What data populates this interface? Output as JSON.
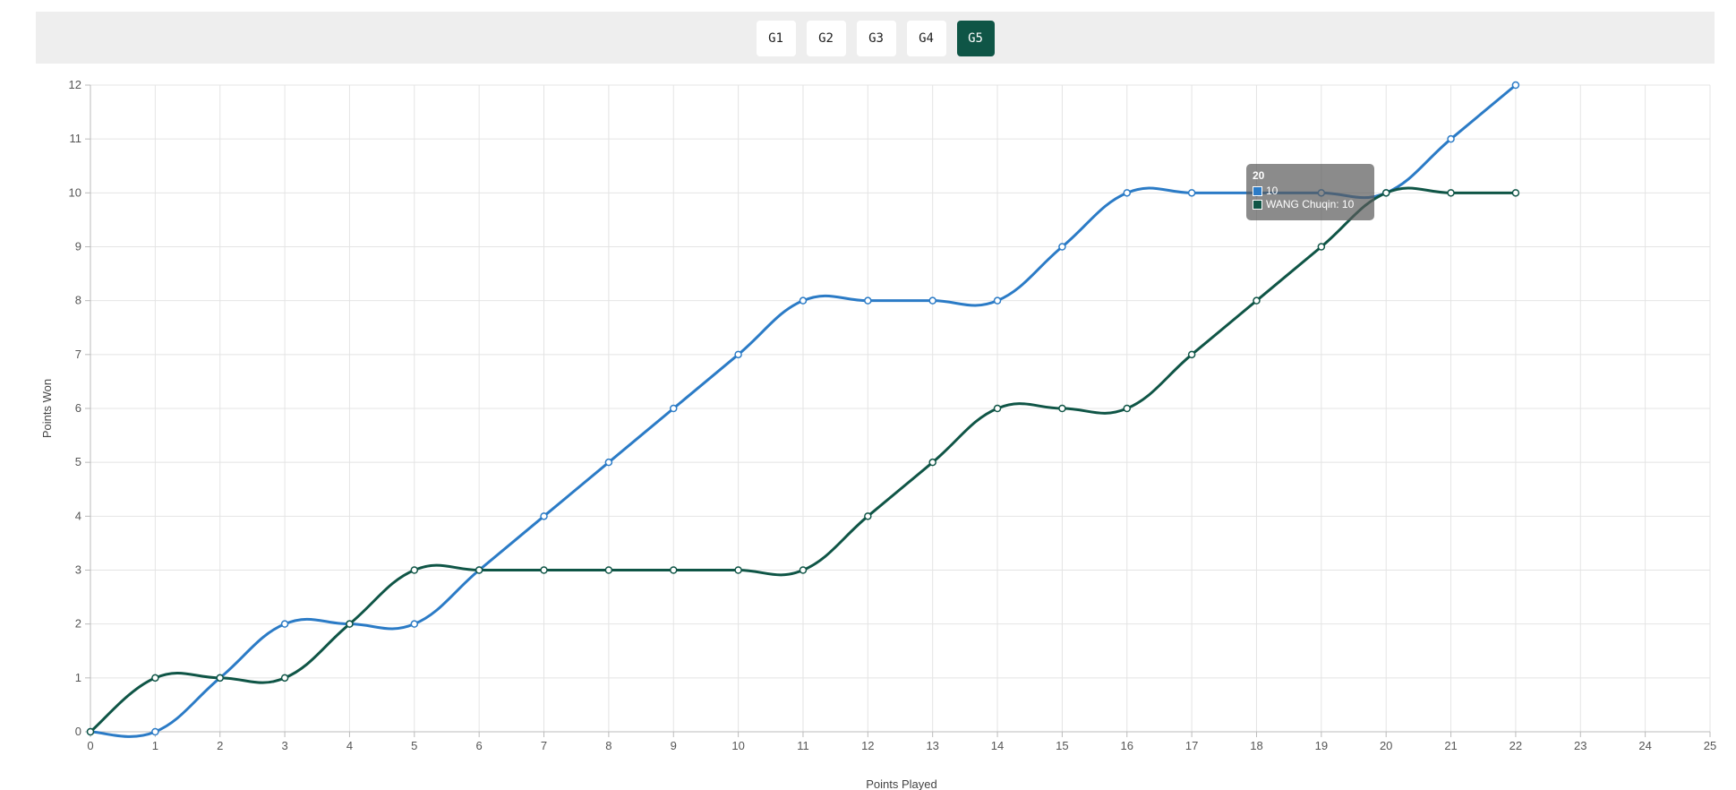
{
  "tabs": [
    {
      "label": "G1",
      "active": false
    },
    {
      "label": "G2",
      "active": false
    },
    {
      "label": "G3",
      "active": false
    },
    {
      "label": "G4",
      "active": false
    },
    {
      "label": "G5",
      "active": true
    }
  ],
  "colors": {
    "series_a": "#2b7bc6",
    "series_b": "#0f5546",
    "active_tab": "#0f5546"
  },
  "chart_data": {
    "type": "line",
    "xlabel": "Points Played",
    "ylabel": "Points Won",
    "xlim": [
      0,
      25
    ],
    "ylim": [
      0,
      12
    ],
    "x_ticks": [
      0,
      1,
      2,
      3,
      4,
      5,
      6,
      7,
      8,
      9,
      10,
      11,
      12,
      13,
      14,
      15,
      16,
      17,
      18,
      19,
      20,
      21,
      22,
      23,
      24,
      25
    ],
    "y_ticks": [
      0,
      1,
      2,
      3,
      4,
      5,
      6,
      7,
      8,
      9,
      10,
      11,
      12
    ],
    "grid": true,
    "x": [
      0,
      1,
      2,
      3,
      4,
      5,
      6,
      7,
      8,
      9,
      10,
      11,
      12,
      13,
      14,
      15,
      16,
      17,
      18,
      19,
      20,
      21,
      22
    ],
    "series": [
      {
        "color": "#2b7bc6",
        "values": [
          0,
          0,
          1,
          2,
          2,
          2,
          3,
          4,
          5,
          6,
          7,
          8,
          8,
          8,
          8,
          9,
          10,
          10,
          10,
          10,
          10,
          11,
          12
        ]
      },
      {
        "name": "WANG Chuqin",
        "color": "#0f5546",
        "values": [
          0,
          1,
          1,
          1,
          2,
          3,
          3,
          3,
          3,
          3,
          3,
          3,
          4,
          5,
          6,
          6,
          6,
          7,
          8,
          9,
          10,
          10,
          10
        ]
      }
    ],
    "tooltip": {
      "title": "20",
      "rows": [
        {
          "text": "10"
        },
        {
          "text": "WANG Chuqin: 10"
        }
      ]
    }
  }
}
